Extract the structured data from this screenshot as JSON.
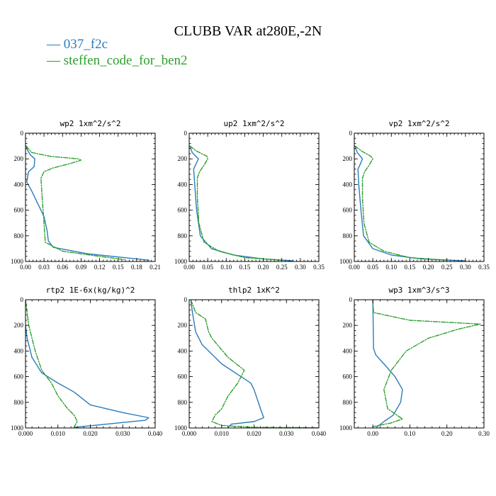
{
  "figure": {
    "title": "CLUBB VAR at280E,-2N",
    "legend": [
      {
        "label": "— 037_f2c",
        "color": "#2b7bba"
      },
      {
        "label": "— steffen_code_for_ben2",
        "color": "#2ca02c"
      }
    ]
  },
  "colors": {
    "series_1": "#2b7bba",
    "series_2": "#2ca02c"
  },
  "chart_data": [
    {
      "type": "line",
      "title": "wp2  1xm^2/s^2",
      "xlim": [
        0,
        0.21
      ],
      "ylim": [
        1000,
        0
      ],
      "xticks": [
        0,
        0.03,
        0.06,
        0.09,
        0.12,
        0.15,
        0.18,
        0.21
      ],
      "xtick_labels": [
        "0.00",
        "0.03",
        "0.06",
        "0.09",
        "0.12",
        "0.15",
        "0.18",
        "0.21"
      ],
      "yticks": [
        0,
        200,
        400,
        600,
        800,
        1000
      ],
      "ytick_labels": [
        "0",
        "200",
        "400",
        "600",
        "800",
        "1000"
      ],
      "series": [
        {
          "name": "037_f2c",
          "x": [
            0.001,
            0.003,
            0.008,
            0.015,
            0.014,
            0.005,
            0.002,
            0.01,
            0.02,
            0.03,
            0.035,
            0.037,
            0.045,
            0.1,
            0.16,
            0.2
          ],
          "y": [
            100,
            130,
            170,
            200,
            260,
            300,
            380,
            450,
            550,
            650,
            760,
            840,
            890,
            940,
            970,
            990
          ]
        },
        {
          "name": "steffen_code_for_ben2",
          "x": [
            0.001,
            0.01,
            0.04,
            0.085,
            0.09,
            0.07,
            0.045,
            0.03,
            0.025,
            0.027,
            0.03,
            0.032,
            0.06,
            0.12,
            0.16
          ],
          "y": [
            100,
            150,
            180,
            200,
            210,
            240,
            270,
            300,
            350,
            500,
            700,
            850,
            920,
            960,
            985
          ]
        }
      ]
    },
    {
      "type": "line",
      "title": "up2  1xm^2/s^2",
      "xlim": [
        0,
        0.35
      ],
      "ylim": [
        1000,
        0
      ],
      "xticks": [
        0,
        0.05,
        0.1,
        0.15,
        0.2,
        0.25,
        0.3,
        0.35
      ],
      "xtick_labels": [
        "0.00",
        "0.05",
        "0.10",
        "0.15",
        "0.20",
        "0.25",
        "0.30",
        "0.35"
      ],
      "yticks": [
        0,
        200,
        400,
        600,
        800,
        1000
      ],
      "ytick_labels": [
        "0",
        "200",
        "400",
        "600",
        "800",
        "1000"
      ],
      "series": [
        {
          "name": "037_f2c",
          "x": [
            0.002,
            0.008,
            0.025,
            0.02,
            0.012,
            0.015,
            0.02,
            0.03,
            0.06,
            0.12,
            0.2,
            0.28
          ],
          "y": [
            100,
            150,
            200,
            230,
            280,
            400,
            600,
            800,
            900,
            950,
            980,
            995
          ]
        },
        {
          "name": "steffen_code_for_ben2",
          "x": [
            0.002,
            0.02,
            0.048,
            0.05,
            0.04,
            0.028,
            0.022,
            0.022,
            0.026,
            0.04,
            0.08,
            0.15,
            0.25
          ],
          "y": [
            100,
            140,
            180,
            200,
            250,
            300,
            350,
            500,
            700,
            850,
            920,
            970,
            990
          ]
        }
      ]
    },
    {
      "type": "line",
      "title": "vp2  1xm^2/s^2",
      "xlim": [
        0,
        0.35
      ],
      "ylim": [
        1000,
        0
      ],
      "xticks": [
        0,
        0.05,
        0.1,
        0.15,
        0.2,
        0.25,
        0.3,
        0.35
      ],
      "xtick_labels": [
        "0.00",
        "0.05",
        "0.10",
        "0.15",
        "0.20",
        "0.25",
        "0.30",
        "0.35"
      ],
      "yticks": [
        0,
        200,
        400,
        600,
        800,
        1000
      ],
      "ytick_labels": [
        "0",
        "200",
        "400",
        "600",
        "800",
        "1000"
      ],
      "series": [
        {
          "name": "037_f2c",
          "x": [
            0.002,
            0.008,
            0.022,
            0.018,
            0.01,
            0.012,
            0.018,
            0.025,
            0.05,
            0.1,
            0.18,
            0.3
          ],
          "y": [
            100,
            150,
            200,
            230,
            280,
            400,
            600,
            800,
            900,
            950,
            980,
            995
          ]
        },
        {
          "name": "steffen_code_for_ben2",
          "x": [
            0.002,
            0.02,
            0.045,
            0.05,
            0.04,
            0.028,
            0.022,
            0.022,
            0.026,
            0.04,
            0.08,
            0.15,
            0.25
          ],
          "y": [
            100,
            140,
            180,
            200,
            250,
            300,
            350,
            500,
            700,
            850,
            920,
            970,
            990
          ]
        }
      ]
    },
    {
      "type": "line",
      "title": "rtp2  1E-6x(kg/kg)^2",
      "xlim": [
        0,
        0.04
      ],
      "ylim": [
        1000,
        0
      ],
      "xticks": [
        0,
        0.01,
        0.02,
        0.03,
        0.04
      ],
      "xtick_labels": [
        "0.000",
        "0.010",
        "0.020",
        "0.030",
        "0.040"
      ],
      "yticks": [
        0,
        200,
        400,
        600,
        800,
        1000
      ],
      "ytick_labels": [
        "0",
        "200",
        "400",
        "600",
        "800",
        "1000"
      ],
      "series": [
        {
          "name": "037_f2c",
          "x": [
            0,
            0.0005,
            0.002,
            0.005,
            0.01,
            0.015,
            0.02,
            0.03,
            0.038,
            0.037,
            0.025,
            0.015
          ],
          "y": [
            200,
            300,
            450,
            570,
            650,
            720,
            820,
            880,
            920,
            940,
            970,
            995
          ]
        },
        {
          "name": "steffen_code_for_ben2",
          "x": [
            0,
            0.001,
            0.003,
            0.005,
            0.008,
            0.01,
            0.013,
            0.015,
            0.016,
            0.015
          ],
          "y": [
            0,
            200,
            400,
            550,
            650,
            750,
            850,
            900,
            950,
            990
          ]
        }
      ]
    },
    {
      "type": "line",
      "title": "thlp2  1xK^2",
      "xlim": [
        0,
        0.04
      ],
      "ylim": [
        1000,
        0
      ],
      "xticks": [
        0,
        0.01,
        0.02,
        0.03,
        0.04
      ],
      "xtick_labels": [
        "0.000",
        "0.010",
        "0.020",
        "0.030",
        "0.040"
      ],
      "yticks": [
        0,
        200,
        400,
        600,
        800,
        1000
      ],
      "ytick_labels": [
        "0",
        "200",
        "400",
        "600",
        "800",
        "1000"
      ],
      "series": [
        {
          "name": "037_f2c",
          "x": [
            0.0005,
            0.001,
            0.002,
            0.004,
            0.01,
            0.016,
            0.019,
            0.02,
            0.022,
            0.023,
            0.02,
            0.013,
            0.012
          ],
          "y": [
            0,
            100,
            250,
            350,
            500,
            600,
            650,
            700,
            850,
            920,
            950,
            970,
            995
          ]
        },
        {
          "name": "steffen_code_for_ben2",
          "x": [
            0.0005,
            0.002,
            0.005,
            0.006,
            0.007,
            0.012,
            0.017,
            0.015,
            0.012,
            0.01,
            0.008,
            0.007,
            0.01,
            0.02,
            0.04
          ],
          "y": [
            0,
            100,
            150,
            250,
            300,
            450,
            550,
            650,
            750,
            850,
            900,
            950,
            980,
            995,
            998
          ]
        }
      ]
    },
    {
      "type": "line",
      "title": "wp3  1xm^3/s^3",
      "xlim": [
        -0.05,
        0.3
      ],
      "ylim": [
        1000,
        0
      ],
      "xticks": [
        0,
        0.1,
        0.2,
        0.3
      ],
      "xtick_labels": [
        "0.00",
        "0.10",
        "0.20",
        "0.30"
      ],
      "yticks": [
        0,
        200,
        400,
        600,
        800,
        1000
      ],
      "ytick_labels": [
        "0",
        "200",
        "400",
        "600",
        "800",
        "1000"
      ],
      "series": [
        {
          "name": "037_f2c",
          "x": [
            0.0,
            0.001,
            0.002,
            0.008,
            0.03,
            0.06,
            0.08,
            0.075,
            0.055,
            0.03,
            0.01
          ],
          "y": [
            0,
            200,
            380,
            430,
            500,
            600,
            700,
            800,
            900,
            950,
            995
          ]
        },
        {
          "name": "steffen_code_for_ben2",
          "x": [
            0.0,
            0.002,
            0.1,
            0.29,
            0.23,
            0.15,
            0.09,
            0.05,
            0.03,
            0.04,
            0.08,
            0.05,
            0.0
          ],
          "y": [
            0,
            100,
            160,
            190,
            230,
            300,
            400,
            550,
            700,
            850,
            930,
            960,
            990
          ]
        }
      ]
    }
  ]
}
